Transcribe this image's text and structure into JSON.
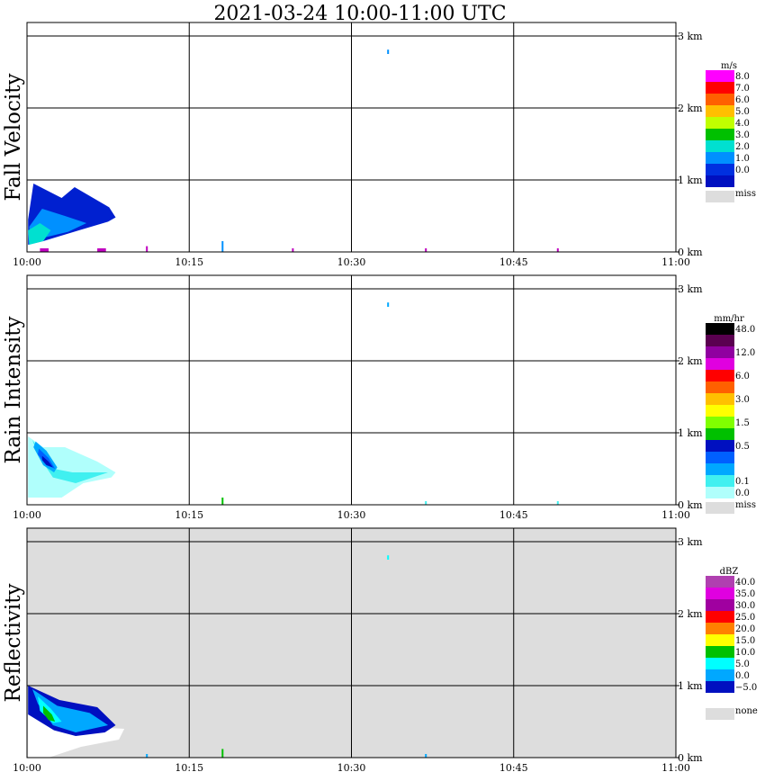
{
  "title": "2021-03-24   10:00-11:00 UTC",
  "chart_data": [
    {
      "type": "heatmap",
      "ylabel": "Fall Velocity",
      "x_ticks": [
        "10:00",
        "10:15",
        "10:30",
        "10:45",
        "11:00"
      ],
      "y_ticks": [
        "0 km",
        "1 km",
        "2 km",
        "3 km"
      ],
      "xlim": [
        "10:00",
        "11:00"
      ],
      "ylim_km": [
        0,
        3
      ],
      "background": "#ffffff",
      "grid": true,
      "legend": {
        "unit": "m/s",
        "levels": [
          {
            "label": "8.0",
            "color": "#ff00ff"
          },
          {
            "label": "7.0",
            "color": "#ff0000"
          },
          {
            "label": "6.0",
            "color": "#ff6000"
          },
          {
            "label": "5.0",
            "color": "#ffbf00"
          },
          {
            "label": "4.0",
            "color": "#c0ff00"
          },
          {
            "label": "3.0",
            "color": "#00c000"
          },
          {
            "label": "2.0",
            "color": "#00e0d0"
          },
          {
            "label": "1.0",
            "color": "#0090ff"
          },
          {
            "label": "0.0",
            "color": "#0030e0"
          },
          {
            "label": "",
            "color": "#0010c0"
          }
        ],
        "missing_label": "miss",
        "missing_color": "#dddddd"
      },
      "echoes": [
        {
          "color": "#0020d0",
          "pts": [
            [
              0.1,
              0.45
            ],
            [
              0.6,
              0.95
            ],
            [
              3.2,
              0.75
            ],
            [
              4.4,
              0.9
            ],
            [
              7.6,
              0.62
            ],
            [
              8.2,
              0.48
            ],
            [
              7.5,
              0.42
            ],
            [
              4.8,
              0.3
            ],
            [
              1.5,
              0.15
            ],
            [
              0.1,
              0.1
            ]
          ]
        },
        {
          "color": "#0090ff",
          "pts": [
            [
              0.2,
              0.35
            ],
            [
              1.4,
              0.6
            ],
            [
              3.5,
              0.5
            ],
            [
              5.5,
              0.4
            ],
            [
              3.8,
              0.28
            ],
            [
              1.6,
              0.2
            ],
            [
              0.3,
              0.15
            ]
          ]
        },
        {
          "color": "#00e0d0",
          "pts": [
            [
              0.1,
              0.3
            ],
            [
              1.2,
              0.4
            ],
            [
              2.2,
              0.3
            ],
            [
              1.5,
              0.15
            ],
            [
              0.2,
              0.1
            ]
          ]
        }
      ],
      "specks": [
        {
          "t": 33.3,
          "h": 2.75,
          "w": 0.15,
          "hh": 0.06,
          "color": "#0090ff"
        },
        {
          "t": 36.8,
          "h": 0.0,
          "w": 0.15,
          "hh": 0.05,
          "color": "#c000c0"
        },
        {
          "t": 18.0,
          "h": 0.0,
          "w": 0.1,
          "hh": 0.15,
          "color": "#0090ff"
        },
        {
          "t": 24.5,
          "h": 0.0,
          "w": 0.1,
          "hh": 0.05,
          "color": "#c000c0"
        },
        {
          "t": 49.0,
          "h": 0.0,
          "w": 0.1,
          "hh": 0.05,
          "color": "#c000c0"
        },
        {
          "t": 1.2,
          "h": 0.0,
          "w": 0.8,
          "hh": 0.05,
          "color": "#c000c0"
        },
        {
          "t": 6.5,
          "h": 0.0,
          "w": 0.8,
          "hh": 0.05,
          "color": "#c000c0"
        },
        {
          "t": 11.0,
          "h": 0.0,
          "w": 0.15,
          "hh": 0.08,
          "color": "#c000c0"
        }
      ]
    },
    {
      "type": "heatmap",
      "ylabel": "Rain Intensity",
      "x_ticks": [
        "10:00",
        "10:15",
        "10:30",
        "10:45",
        "11:00"
      ],
      "y_ticks": [
        "0 km",
        "1 km",
        "2 km",
        "3 km"
      ],
      "xlim": [
        "10:00",
        "11:00"
      ],
      "ylim_km": [
        0,
        3
      ],
      "background": "#ffffff",
      "grid": true,
      "legend": {
        "unit": "mm/hr",
        "levels": [
          {
            "label": "48.0",
            "color": "#000000"
          },
          {
            "label": "",
            "color": "#5a0050"
          },
          {
            "label": "12.0",
            "color": "#9000a0"
          },
          {
            "label": "",
            "color": "#e000e0"
          },
          {
            "label": "6.0",
            "color": "#ff0000"
          },
          {
            "label": "",
            "color": "#ff6000"
          },
          {
            "label": "3.0",
            "color": "#ffc000"
          },
          {
            "label": "",
            "color": "#ffff00"
          },
          {
            "label": "1.5",
            "color": "#80ff00"
          },
          {
            "label": "",
            "color": "#00c000"
          },
          {
            "label": "0.5",
            "color": "#0010c0"
          },
          {
            "label": "",
            "color": "#0060ff"
          },
          {
            "label": "",
            "color": "#00a8ff"
          },
          {
            "label": "0.1",
            "color": "#40f0f0"
          },
          {
            "label": "0.0",
            "color": "#b0fffc"
          }
        ],
        "missing_label": "miss",
        "missing_color": "#dddddd"
      },
      "echoes": [
        {
          "color": "#b0fffc",
          "pts": [
            [
              0.1,
              0.95
            ],
            [
              1.5,
              0.8
            ],
            [
              3.5,
              0.8
            ],
            [
              6.5,
              0.6
            ],
            [
              8.2,
              0.45
            ],
            [
              7.8,
              0.38
            ],
            [
              5.2,
              0.3
            ],
            [
              3.2,
              0.1
            ],
            [
              0.1,
              0.1
            ]
          ]
        },
        {
          "color": "#40f0f0",
          "pts": [
            [
              0.5,
              0.9
            ],
            [
              2.5,
              0.5
            ],
            [
              4.2,
              0.45
            ],
            [
              7.5,
              0.45
            ],
            [
              4.5,
              0.3
            ],
            [
              2.4,
              0.38
            ],
            [
              1.0,
              0.7
            ]
          ]
        },
        {
          "color": "#00a8ff",
          "pts": [
            [
              0.8,
              0.88
            ],
            [
              1.8,
              0.75
            ],
            [
              2.8,
              0.52
            ],
            [
              2.5,
              0.45
            ],
            [
              1.5,
              0.55
            ],
            [
              0.6,
              0.8
            ]
          ]
        },
        {
          "color": "#0060ff",
          "pts": [
            [
              1.1,
              0.78
            ],
            [
              2.0,
              0.65
            ],
            [
              2.6,
              0.5
            ],
            [
              1.8,
              0.55
            ],
            [
              1.0,
              0.7
            ]
          ]
        },
        {
          "color": "#0010c0",
          "pts": [
            [
              1.4,
              0.68
            ],
            [
              2.0,
              0.6
            ],
            [
              2.4,
              0.52
            ],
            [
              1.8,
              0.55
            ],
            [
              1.4,
              0.62
            ]
          ]
        }
      ],
      "specks": [
        {
          "t": 33.3,
          "h": 2.75,
          "w": 0.15,
          "hh": 0.06,
          "color": "#00a8ff"
        },
        {
          "t": 18.0,
          "h": 0.0,
          "w": 0.1,
          "hh": 0.1,
          "color": "#00c000"
        },
        {
          "t": 36.8,
          "h": 0.0,
          "w": 0.1,
          "hh": 0.05,
          "color": "#40f0f0"
        },
        {
          "t": 49.0,
          "h": 0.0,
          "w": 0.1,
          "hh": 0.05,
          "color": "#40f0f0"
        }
      ]
    },
    {
      "type": "heatmap",
      "ylabel": "Reflectivity",
      "x_ticks": [
        "10:00",
        "10:15",
        "10:30",
        "10:45",
        "11:00"
      ],
      "y_ticks": [
        "0 km",
        "1 km",
        "2 km",
        "3 km"
      ],
      "xlim": [
        "10:00",
        "11:00"
      ],
      "ylim_km": [
        0,
        3
      ],
      "background": "#dddddd",
      "grid": true,
      "legend": {
        "unit": "dBZ",
        "levels": [
          {
            "label": "40.0",
            "color": "#b040b0"
          },
          {
            "label": "35.0",
            "color": "#e000e0"
          },
          {
            "label": "30.0",
            "color": "#a000a0"
          },
          {
            "label": "25.0",
            "color": "#ff0000"
          },
          {
            "label": "20.0",
            "color": "#ff8000"
          },
          {
            "label": "15.0",
            "color": "#ffff00"
          },
          {
            "label": "10.0",
            "color": "#00c000"
          },
          {
            "label": "5.0",
            "color": "#00ffff"
          },
          {
            "label": "0.0",
            "color": "#00a8ff"
          },
          {
            "label": "−5.0",
            "color": "#0010c0"
          },
          {
            "label": "",
            "color": "#ffffff"
          }
        ],
        "missing_label": "none",
        "missing_color": "#dddddd"
      },
      "echoes": [
        {
          "color": "#ffffff",
          "pts": [
            [
              0.1,
              0.65
            ],
            [
              3.0,
              0.45
            ],
            [
              9.0,
              0.4
            ],
            [
              8.5,
              0.25
            ],
            [
              5.0,
              0.15
            ],
            [
              2.0,
              0.0
            ],
            [
              0.1,
              0.0
            ]
          ]
        },
        {
          "color": "#0010c0",
          "pts": [
            [
              0.1,
              1.0
            ],
            [
              3.0,
              0.8
            ],
            [
              6.5,
              0.7
            ],
            [
              8.2,
              0.45
            ],
            [
              7.2,
              0.35
            ],
            [
              4.5,
              0.3
            ],
            [
              2.5,
              0.38
            ],
            [
              0.1,
              0.6
            ]
          ]
        },
        {
          "color": "#00a8ff",
          "pts": [
            [
              0.5,
              0.95
            ],
            [
              2.8,
              0.72
            ],
            [
              5.8,
              0.62
            ],
            [
              7.5,
              0.45
            ],
            [
              4.5,
              0.35
            ],
            [
              2.4,
              0.45
            ],
            [
              1.0,
              0.75
            ]
          ]
        },
        {
          "color": "#00ffff",
          "pts": [
            [
              1.0,
              0.85
            ],
            [
              2.2,
              0.68
            ],
            [
              3.2,
              0.5
            ],
            [
              2.4,
              0.48
            ],
            [
              1.2,
              0.65
            ]
          ]
        },
        {
          "color": "#00c000",
          "pts": [
            [
              1.5,
              0.72
            ],
            [
              2.3,
              0.6
            ],
            [
              2.6,
              0.5
            ],
            [
              2.0,
              0.52
            ],
            [
              1.5,
              0.62
            ]
          ]
        }
      ],
      "specks": [
        {
          "t": 33.3,
          "h": 2.75,
          "w": 0.15,
          "hh": 0.06,
          "color": "#00ffff"
        },
        {
          "t": 18.0,
          "h": 0.0,
          "w": 0.1,
          "hh": 0.12,
          "color": "#00c000"
        },
        {
          "t": 36.8,
          "h": 0.0,
          "w": 0.15,
          "hh": 0.05,
          "color": "#00a8ff"
        },
        {
          "t": 11.0,
          "h": 0.0,
          "w": 0.15,
          "hh": 0.05,
          "color": "#00a8ff"
        }
      ]
    }
  ]
}
